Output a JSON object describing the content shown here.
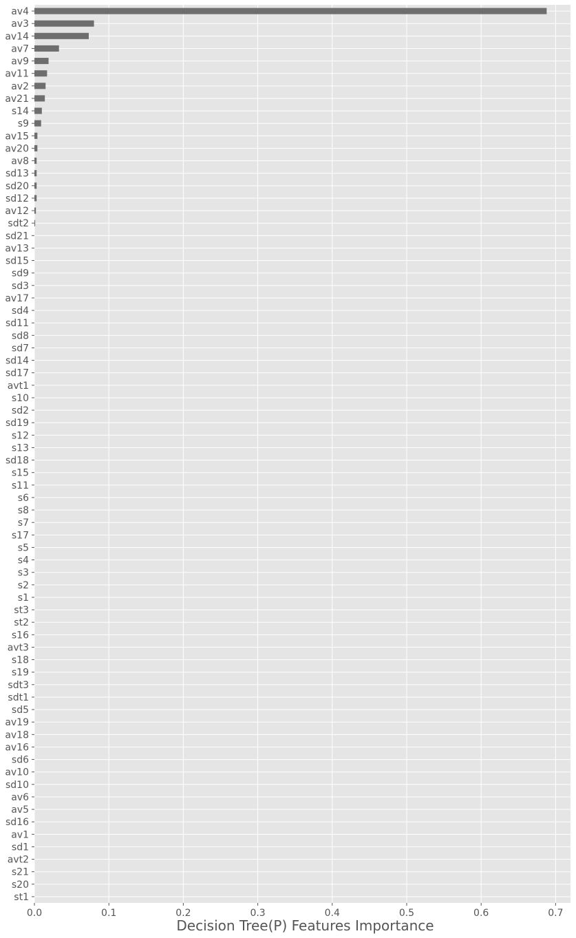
{
  "chart_data": {
    "type": "bar",
    "orientation": "horizontal",
    "xlabel": "Decision Tree(P) Features Importance",
    "ylabel": "",
    "xlim": [
      0,
      0.72
    ],
    "xticks": [
      "0.0",
      "0.1",
      "0.2",
      "0.3",
      "0.4",
      "0.5",
      "0.6",
      "0.7"
    ],
    "grid": true,
    "bar_color": "#6e6e6e",
    "background_color": "#e5e5e5",
    "categories": [
      "av4",
      "av3",
      "av14",
      "av7",
      "av9",
      "av11",
      "av2",
      "av21",
      "s14",
      "s9",
      "av15",
      "av20",
      "av8",
      "sd13",
      "sd20",
      "sd12",
      "av12",
      "sdt2",
      "sd21",
      "av13",
      "sd15",
      "sd9",
      "sd3",
      "av17",
      "sd4",
      "sd11",
      "sd8",
      "sd7",
      "sd14",
      "sd17",
      "avt1",
      "s10",
      "sd2",
      "sd19",
      "s12",
      "s13",
      "sd18",
      "s15",
      "s11",
      "s6",
      "s8",
      "s7",
      "s17",
      "s5",
      "s4",
      "s3",
      "s2",
      "s1",
      "st3",
      "st2",
      "s16",
      "avt3",
      "s18",
      "s19",
      "sdt3",
      "sdt1",
      "sd5",
      "av19",
      "av18",
      "av16",
      "sd6",
      "av10",
      "sd10",
      "av6",
      "av5",
      "sd16",
      "av1",
      "sd1",
      "avt2",
      "s21",
      "s20",
      "st1"
    ],
    "values": [
      0.688,
      0.08,
      0.073,
      0.033,
      0.019,
      0.017,
      0.015,
      0.014,
      0.01,
      0.009,
      0.004,
      0.004,
      0.003,
      0.003,
      0.003,
      0.003,
      0.002,
      0.001,
      0,
      0,
      0,
      0,
      0,
      0,
      0,
      0,
      0,
      0,
      0,
      0,
      0,
      0,
      0,
      0,
      0,
      0,
      0,
      0,
      0,
      0,
      0,
      0,
      0,
      0,
      0,
      0,
      0,
      0,
      0,
      0,
      0,
      0,
      0,
      0,
      0,
      0,
      0,
      0,
      0,
      0,
      0,
      0,
      0,
      0,
      0,
      0,
      0,
      0,
      0,
      0,
      0,
      0
    ]
  }
}
